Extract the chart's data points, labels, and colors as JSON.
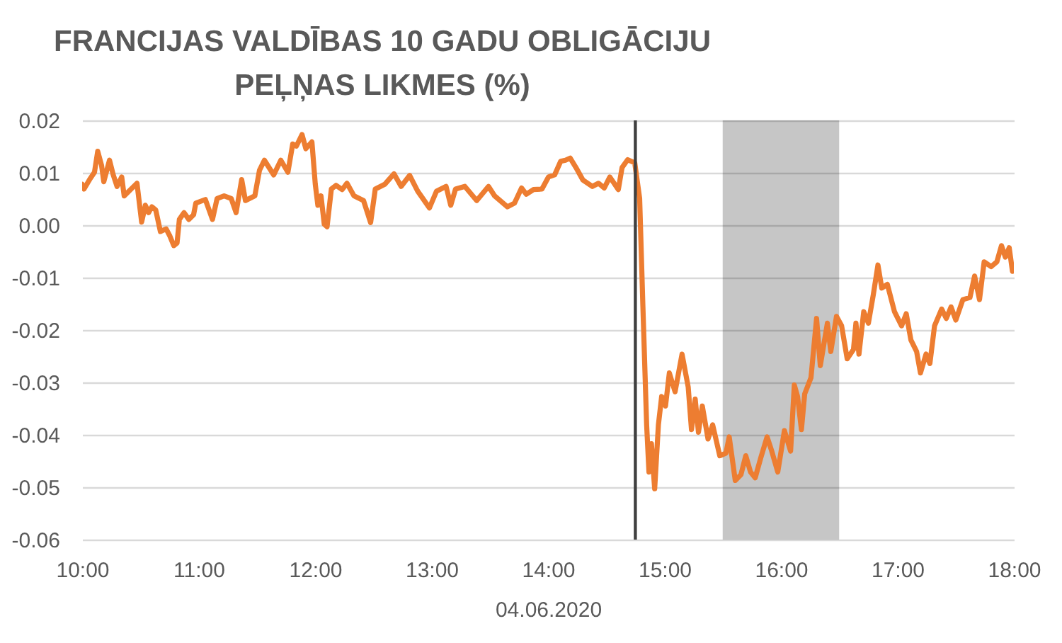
{
  "chart_data": {
    "type": "line",
    "title": "FRANCIJAS VALDĪBAS 10 GADU OBLIGĀCIJU\nPEĻŅAS LIKMES (%)",
    "xlabel": "04.06.2020",
    "color": "#ed7d31",
    "x": [
      10.0,
      10.016,
      10.064,
      10.106,
      10.134,
      10.167,
      10.186,
      10.235,
      10.267,
      10.3,
      10.34,
      10.361,
      10.471,
      10.511,
      10.543,
      10.571,
      10.599,
      10.632,
      10.672,
      10.721,
      10.754,
      10.787,
      10.815,
      10.835,
      10.875,
      10.916,
      10.957,
      10.976,
      11.058,
      11.119,
      11.159,
      11.219,
      11.28,
      11.322,
      11.37,
      11.402,
      11.483,
      11.523,
      11.565,
      11.645,
      11.706,
      11.767,
      11.808,
      11.84,
      11.888,
      11.921,
      11.973,
      12.002,
      12.024,
      12.051,
      12.079,
      12.103,
      12.14,
      12.18,
      12.233,
      12.274,
      12.334,
      12.416,
      12.477,
      12.517,
      12.598,
      12.678,
      12.739,
      12.812,
      12.881,
      12.982,
      13.043,
      13.125,
      13.165,
      13.206,
      13.286,
      13.388,
      13.489,
      13.541,
      13.651,
      13.712,
      13.773,
      13.814,
      13.875,
      13.948,
      14.004,
      14.057,
      14.109,
      14.15,
      14.191,
      14.24,
      14.3,
      14.381,
      14.434,
      14.483,
      14.531,
      14.604,
      14.636,
      14.684,
      14.745,
      14.787,
      14.815,
      14.847,
      14.867,
      14.888,
      14.916,
      14.948,
      14.976,
      15.009,
      15.042,
      15.091,
      15.151,
      15.204,
      15.232,
      15.264,
      15.292,
      15.325,
      15.374,
      15.414,
      15.475,
      15.528,
      15.556,
      15.608,
      15.657,
      15.698,
      15.739,
      15.779,
      15.827,
      15.881,
      15.921,
      15.973,
      16.03,
      16.083,
      16.115,
      16.143,
      16.176,
      16.204,
      16.258,
      16.306,
      16.338,
      16.399,
      16.428,
      16.477,
      16.521,
      16.569,
      16.623,
      16.644,
      16.67,
      16.711,
      16.751,
      16.793,
      16.833,
      16.866,
      16.914,
      16.975,
      17.036,
      17.076,
      17.116,
      17.165,
      17.198,
      17.246,
      17.279,
      17.319,
      17.38,
      17.42,
      17.461,
      17.502,
      17.562,
      17.623,
      17.663,
      17.705,
      17.745,
      17.805,
      17.854,
      17.894,
      17.927,
      17.96,
      17.988,
      18.0
    ],
    "values": [
      0.0078,
      0.0069,
      0.0087,
      0.0101,
      0.0141,
      0.0114,
      0.0083,
      0.0124,
      0.0096,
      0.0074,
      0.0092,
      0.0056,
      0.008,
      0.0006,
      0.0038,
      0.0024,
      0.0035,
      0.0029,
      -0.0012,
      -0.0007,
      -0.0021,
      -0.0039,
      -0.0034,
      0.0011,
      0.0024,
      0.0011,
      0.002,
      0.0042,
      0.0049,
      0.0011,
      0.0051,
      0.0056,
      0.0051,
      0.0024,
      0.0087,
      0.0047,
      0.0056,
      0.0105,
      0.0124,
      0.0096,
      0.0124,
      0.0101,
      0.0155,
      0.0151,
      0.0173,
      0.0146,
      0.0159,
      0.0078,
      0.0038,
      0.0056,
      0.0002,
      -0.0003,
      0.0069,
      0.0076,
      0.0068,
      0.008,
      0.0056,
      0.0047,
      0.0005,
      0.0069,
      0.0078,
      0.0098,
      0.0074,
      0.0095,
      0.0065,
      0.0033,
      0.0065,
      0.0074,
      0.0038,
      0.0069,
      0.0074,
      0.0047,
      0.0074,
      0.0056,
      0.0035,
      0.0042,
      0.0071,
      0.0059,
      0.0068,
      0.0069,
      0.0092,
      0.0096,
      0.0122,
      0.0124,
      0.0128,
      0.011,
      0.0086,
      0.0074,
      0.008,
      0.0071,
      0.0092,
      0.0068,
      0.011,
      0.0125,
      0.0119,
      0.0051,
      -0.0156,
      -0.0381,
      -0.0471,
      -0.0417,
      -0.0503,
      -0.0381,
      -0.0327,
      -0.0345,
      -0.0282,
      -0.0318,
      -0.0246,
      -0.0309,
      -0.039,
      -0.0332,
      -0.0395,
      -0.0345,
      -0.0408,
      -0.0381,
      -0.044,
      -0.0435,
      -0.0404,
      -0.0487,
      -0.0476,
      -0.044,
      -0.0471,
      -0.0482,
      -0.0444,
      -0.0404,
      -0.0431,
      -0.0471,
      -0.0392,
      -0.0431,
      -0.0305,
      -0.0327,
      -0.039,
      -0.0322,
      -0.0291,
      -0.0178,
      -0.0268,
      -0.0187,
      -0.0241,
      -0.0174,
      -0.0192,
      -0.0255,
      -0.0237,
      -0.0187,
      -0.0246,
      -0.0165,
      -0.0187,
      -0.0133,
      -0.0076,
      -0.012,
      -0.0113,
      -0.0165,
      -0.0192,
      -0.0169,
      -0.0219,
      -0.0241,
      -0.0282,
      -0.0246,
      -0.0264,
      -0.0192,
      -0.016,
      -0.0178,
      -0.0156,
      -0.0181,
      -0.0142,
      -0.0138,
      -0.0097,
      -0.0142,
      -0.007,
      -0.0079,
      -0.007,
      -0.0039,
      -0.0061,
      -0.0043,
      -0.0088,
      -0.0079
    ],
    "xlim": [
      10,
      18
    ],
    "xticks": [
      {
        "value": 10,
        "label": "10:00"
      },
      {
        "value": 11,
        "label": "11:00"
      },
      {
        "value": 12,
        "label": "12:00"
      },
      {
        "value": 13,
        "label": "13:00"
      },
      {
        "value": 14,
        "label": "14:00"
      },
      {
        "value": 15,
        "label": "15:00"
      },
      {
        "value": 16,
        "label": "16:00"
      },
      {
        "value": 17,
        "label": "17:00"
      },
      {
        "value": 18,
        "label": "18:00"
      }
    ],
    "ylim": [
      -0.06,
      0.02
    ],
    "yticks": [
      -0.06,
      -0.05,
      -0.04,
      -0.03,
      -0.02,
      -0.01,
      {
        "value": 0,
        "label": "0.00"
      },
      0.01,
      0.02
    ],
    "grid": "y",
    "ref_lines": [
      {
        "axis": "x",
        "value": 14.75,
        "color": "#404040"
      }
    ],
    "bands": [
      {
        "axis": "x",
        "from": 15.5,
        "to": 16.5,
        "color": "#c6c6c6"
      }
    ]
  }
}
